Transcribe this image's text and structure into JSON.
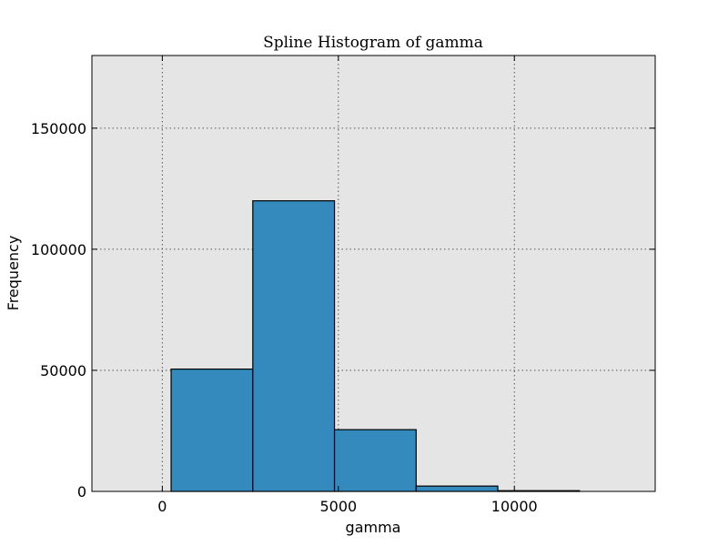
{
  "chart_data": {
    "type": "bar",
    "subtype": "histogram",
    "title": "Spline Histogram of gamma",
    "xlabel": "gamma",
    "ylabel": "Frequency",
    "xlim": [
      -2000,
      14000
    ],
    "ylim": [
      0,
      180000
    ],
    "xticks": [
      0,
      5000,
      10000
    ],
    "xtick_labels": [
      "0",
      "5000",
      "10000"
    ],
    "yticks": [
      0,
      50000,
      100000,
      150000
    ],
    "ytick_labels": [
      "0",
      "50000",
      "100000",
      "150000"
    ],
    "grid": true,
    "bar_color": "#348abd",
    "bins": [
      {
        "start": 250,
        "end": 2570,
        "value": 50500
      },
      {
        "start": 2570,
        "end": 4890,
        "value": 120000
      },
      {
        "start": 4890,
        "end": 7210,
        "value": 25500
      },
      {
        "start": 7210,
        "end": 9530,
        "value": 2200
      },
      {
        "start": 9530,
        "end": 11850,
        "value": 300
      }
    ]
  }
}
